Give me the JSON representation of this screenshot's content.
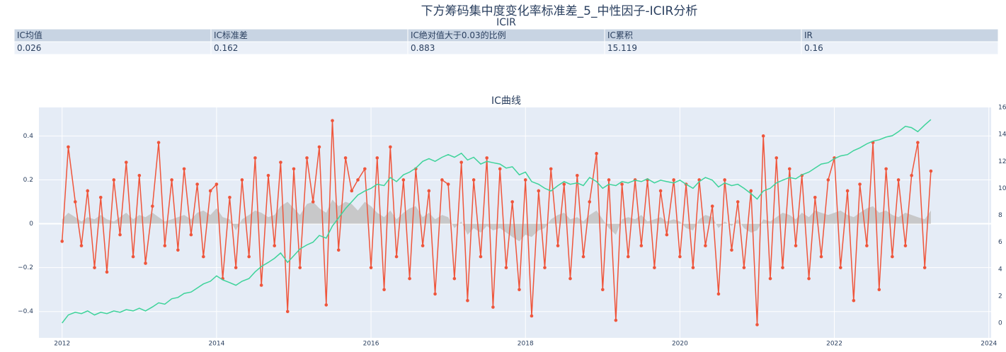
{
  "title": "下方筹码集中度变化率标准差_5_中性因子-ICIR分析",
  "table": {
    "title": "ICIR",
    "columns": [
      "IC均值",
      "IC标准差",
      "IC绝对值大于0.03的比例",
      "IC累积",
      "IR"
    ],
    "rows": [
      [
        "0.026",
        "0.162",
        "0.883",
        "15.119",
        "0.16"
      ]
    ]
  },
  "chart_data": {
    "type": "line",
    "title": "IC曲线",
    "x": [
      2012,
      2012.08,
      2012.17,
      2012.25,
      2012.33,
      2012.42,
      2012.5,
      2012.58,
      2012.67,
      2012.75,
      2012.83,
      2012.92,
      2013,
      2013.08,
      2013.17,
      2013.25,
      2013.33,
      2013.42,
      2013.5,
      2013.58,
      2013.67,
      2013.75,
      2013.83,
      2013.92,
      2014,
      2014.08,
      2014.17,
      2014.25,
      2014.33,
      2014.42,
      2014.5,
      2014.58,
      2014.67,
      2014.75,
      2014.83,
      2014.92,
      2015,
      2015.08,
      2015.17,
      2015.25,
      2015.33,
      2015.42,
      2015.5,
      2015.58,
      2015.67,
      2015.75,
      2015.83,
      2015.92,
      2016,
      2016.08,
      2016.17,
      2016.25,
      2016.33,
      2016.42,
      2016.5,
      2016.58,
      2016.67,
      2016.75,
      2016.83,
      2016.92,
      2017,
      2017.08,
      2017.17,
      2017.25,
      2017.33,
      2017.42,
      2017.5,
      2017.58,
      2017.67,
      2017.75,
      2017.83,
      2017.92,
      2018,
      2018.08,
      2018.17,
      2018.25,
      2018.33,
      2018.42,
      2018.5,
      2018.58,
      2018.67,
      2018.75,
      2018.83,
      2018.92,
      2019,
      2019.08,
      2019.17,
      2019.25,
      2019.33,
      2019.42,
      2019.5,
      2019.58,
      2019.67,
      2019.75,
      2019.83,
      2019.92,
      2020,
      2020.08,
      2020.17,
      2020.25,
      2020.33,
      2020.42,
      2020.5,
      2020.58,
      2020.67,
      2020.75,
      2020.83,
      2020.92,
      2021,
      2021.08,
      2021.17,
      2021.25,
      2021.33,
      2021.42,
      2021.5,
      2021.58,
      2021.67,
      2021.75,
      2021.83,
      2021.92,
      2022,
      2022.08,
      2022.17,
      2022.25,
      2022.33,
      2022.42,
      2022.5,
      2022.58,
      2022.67,
      2022.75,
      2022.83,
      2022.92,
      2023,
      2023.08,
      2023.17,
      2023.25
    ],
    "series": [
      {
        "kind": "area",
        "color": "#c4c4c4",
        "values": [
          0.02,
          0.05,
          0.03,
          0.01,
          0.03,
          0.02,
          0.04,
          0.02,
          0.01,
          0.03,
          0.05,
          0.02,
          0.04,
          0.03,
          0.05,
          0.03,
          0.01,
          0.02,
          0.03,
          0.04,
          0.02,
          0.05,
          0.06,
          0.04,
          0.07,
          0.03,
          0.02,
          -0.03,
          0.02,
          0.04,
          0.06,
          0.05,
          0.03,
          0.04,
          0.08,
          0.1,
          0.07,
          0.04,
          0.09,
          0.1,
          0.07,
          0.05,
          0.11,
          0.08,
          0.1,
          0.09,
          0.06,
          0.1,
          0.08,
          0.05,
          0.03,
          0.06,
          0.02,
          0.05,
          0.07,
          0.08,
          0.03,
          0.05,
          0.02,
          0.04,
          0.03,
          -0.02,
          0.01,
          -0.05,
          -0.02,
          -0.04,
          -0.01,
          -0.03,
          -0.02,
          -0.04,
          -0.06,
          -0.08,
          -0.05,
          -0.06,
          -0.03,
          -0.02,
          0.02,
          0.04,
          0.05,
          0.02,
          0.03,
          0.01,
          0.04,
          0.06,
          0.02,
          -0.02,
          -0.05,
          0.02,
          0.03,
          0.02,
          0.04,
          0.01,
          0.02,
          0.03,
          0.01,
          0.02,
          0.01,
          -0.02,
          -0.03,
          0.02,
          0.04,
          0.03,
          -0.02,
          0.01,
          -0.01,
          0.02,
          -0.02,
          -0.04,
          -0.03,
          0.02,
          0.01,
          0.03,
          0.05,
          0.04,
          0.02,
          0.05,
          0.03,
          0.06,
          0.05,
          0.04,
          0.05,
          0.06,
          0.04,
          0.03,
          0.05,
          0.07,
          0.08,
          0.05,
          0.06,
          0.04,
          0.03,
          0.05,
          0.04,
          0.03,
          0.02,
          0.06
        ]
      },
      {
        "kind": "markers+line",
        "color": "#ef553b",
        "values": [
          -0.08,
          0.35,
          0.1,
          -0.1,
          0.15,
          -0.2,
          0.12,
          -0.22,
          0.2,
          -0.05,
          0.28,
          -0.15,
          0.22,
          -0.18,
          0.08,
          0.37,
          -0.1,
          0.2,
          -0.12,
          0.25,
          -0.05,
          0.18,
          -0.15,
          0.15,
          0.18,
          -0.25,
          0.12,
          -0.2,
          0.2,
          -0.15,
          0.3,
          -0.28,
          0.22,
          -0.1,
          0.28,
          -0.4,
          0.25,
          -0.2,
          0.3,
          0.1,
          0.35,
          -0.37,
          0.47,
          -0.12,
          0.3,
          0.15,
          0.2,
          0.25,
          -0.2,
          0.3,
          -0.3,
          0.35,
          -0.15,
          0.2,
          -0.25,
          0.25,
          -0.1,
          0.15,
          -0.32,
          0.2,
          0.18,
          -0.25,
          0.28,
          -0.35,
          0.2,
          -0.15,
          0.3,
          -0.38,
          0.25,
          -0.2,
          0.1,
          -0.3,
          0.2,
          -0.42,
          0.15,
          -0.2,
          0.25,
          -0.1,
          0.18,
          -0.25,
          0.22,
          -0.15,
          0.1,
          0.32,
          -0.3,
          0.2,
          -0.44,
          0.18,
          -0.15,
          0.2,
          -0.1,
          0.2,
          -0.2,
          0.15,
          -0.05,
          0.2,
          -0.15,
          0.18,
          -0.2,
          0.2,
          -0.1,
          0.08,
          -0.32,
          0.2,
          -0.12,
          0.1,
          -0.2,
          0.15,
          -0.46,
          0.4,
          -0.25,
          0.3,
          -0.2,
          0.25,
          -0.1,
          0.22,
          -0.25,
          0.12,
          -0.15,
          0.2,
          0.3,
          -0.2,
          0.15,
          -0.35,
          0.18,
          -0.1,
          0.37,
          -0.3,
          0.25,
          -0.15,
          0.2,
          -0.1,
          0.22,
          0.37,
          -0.2,
          0.24
        ]
      },
      {
        "kind": "line",
        "axis": "y2",
        "color": "#3ed39a",
        "values": [
          0,
          0.6,
          0.8,
          0.7,
          0.9,
          0.6,
          0.8,
          0.7,
          0.9,
          0.8,
          1.0,
          0.9,
          1.1,
          0.9,
          1.2,
          1.5,
          1.4,
          1.8,
          1.9,
          2.2,
          2.3,
          2.6,
          2.9,
          3.1,
          3.5,
          3.2,
          3.0,
          2.8,
          3.1,
          3.3,
          3.8,
          4.2,
          4.5,
          4.8,
          5.2,
          4.5,
          5.0,
          5.5,
          5.8,
          6.0,
          6.5,
          6.3,
          7.2,
          7.8,
          8.5,
          9.0,
          9.5,
          9.8,
          10.0,
          10.3,
          10.2,
          10.8,
          10.5,
          11.0,
          11.2,
          11.5,
          12.0,
          12.2,
          12.0,
          12.3,
          12.5,
          12.3,
          12.6,
          12.1,
          12.3,
          11.8,
          12.0,
          11.9,
          11.8,
          11.5,
          11.6,
          11.0,
          11.2,
          10.5,
          10.3,
          10.0,
          9.8,
          10.2,
          10.5,
          10.3,
          10.4,
          10.2,
          10.8,
          10.5,
          10.0,
          10.3,
          10.2,
          10.5,
          10.4,
          10.6,
          10.5,
          10.7,
          10.4,
          10.6,
          10.5,
          10.4,
          10.6,
          10.3,
          10.0,
          10.5,
          10.8,
          10.6,
          10.1,
          10.4,
          10.2,
          10.3,
          10.0,
          9.6,
          9.2,
          9.8,
          10.0,
          10.4,
          10.6,
          10.8,
          10.7,
          11.0,
          11.2,
          11.5,
          11.8,
          11.9,
          12.2,
          12.4,
          12.5,
          12.8,
          13.0,
          13.3,
          13.5,
          13.6,
          13.8,
          13.9,
          14.2,
          14.6,
          14.5,
          14.2,
          14.7,
          15.1
        ]
      }
    ],
    "xlim": [
      2011.7,
      2024.03
    ],
    "xticks": [
      2012,
      2014,
      2016,
      2018,
      2020,
      2022,
      2024
    ],
    "ylim": [
      -0.52,
      0.53
    ],
    "yticks": [
      {
        "value": -0.4,
        "label": "−0.4"
      },
      {
        "value": -0.2,
        "label": "−0.2"
      },
      0,
      0.2,
      0.4
    ],
    "y2lim": [
      -1.1,
      16
    ],
    "y2ticks": [
      0,
      2,
      4,
      6,
      8,
      10,
      12,
      14,
      16
    ],
    "grid": true
  }
}
